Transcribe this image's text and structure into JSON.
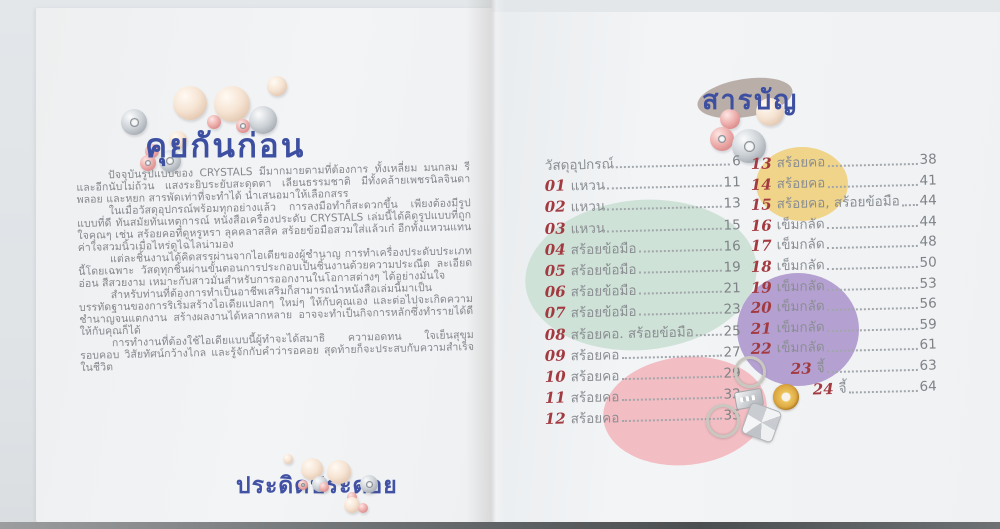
{
  "book": {
    "left_page": {
      "title": "คุยกันก่อน",
      "paragraphs": [
        "ปัจจุบันรูปแบบของ CRYSTALS มีมากมายตามที่ต้องการ ทั้งเหลี่ยม มนกลม รี และอีกนับไม่ถ้วน แสงระยิบระยับสะดุดตา เลียนธรรมชาติ มีทั้งคล้ายเพชรนิลจินดา พลอย และหยก สารพัดเท่าที่จะทำได้ นำเสนอมาให้เลือกสรร",
        "ในเมื่อวัสดุอุปกรณ์พร้อมทุกอย่างแล้ว การลงมือทำก็สะดวกขึ้น เพียงต้องมีรูปแบบที่ดี ทันสมัยทันเหตุการณ์ หนังสือเครื่องประดับ CRYSTALS เล่มนี้ได้คิดรูปแบบที่ถูกใจคุณๆ เช่น สร้อยคอที่ดูหรูหรา ลุคคลาสสิค สร้อยข้อมือสวมใส่แล้วเก๋ อีกทั้งแหวนแทนค่าใจสวมนิ้วเมื่อไหร่ดูไฉไลน่ามอง",
        "แต่ละชิ้นงานได้คิดสรรผ่านจากไอเดียของผู้ชำนาญ การทำเครื่องประดับประเภทนี้โดยเฉพาะ วัสดุทุกชิ้นผ่านขั้นตอนการประกอบเป็นชิ้นงานด้วยความประณีต ละเอียดอ่อน สีสวยงาม เหมาะกับสาวมั่นสำหรับการออกงานในโอกาสต่างๆ ได้อย่างมั่นใจ",
        "สำหรับท่านที่ต้องการทำเป็นอาชีพเสริมก็สามารถนำหนังสือเล่มนี้มาเป็นบรรทัดฐานของการริเริ่มสร้างไอเดียแปลกๆ ใหม่ๆ ให้กับคุณเอง และต่อไปจะเกิดความชำนาญจนแตกงาน สร้างผลงานได้หลากหลาย อาจจะทำเป็นกิจการหลักซึ่งทำรายได้ดีให้กับคุณก็ได้",
        "การทำงานที่ต้องใช้ไอเดียแบบนี้ผู้ทำจะได้สมาธิ ความอดทน ใจเย็นสุขุมรอบคอบ วิสัยทัศน์กว้างไกล และรู้จักกับคำว่ารอคอย สุดท้ายก็จะประสบกับความสำเร็จในชีวิต"
      ],
      "footer_title": "ประดิดประดอย"
    },
    "right_page": {
      "title": "สารบัญ",
      "toc": {
        "left_column": [
          {
            "num": "",
            "label": "วัสดุอุปกรณ์",
            "page": "6"
          },
          {
            "num": "01",
            "label": "แหวน",
            "page": "11"
          },
          {
            "num": "02",
            "label": "แหวน",
            "page": "13"
          },
          {
            "num": "03",
            "label": "แหวน",
            "page": "15"
          },
          {
            "num": "04",
            "label": "สร้อยข้อมือ",
            "page": "16"
          },
          {
            "num": "05",
            "label": "สร้อยข้อมือ",
            "page": "19"
          },
          {
            "num": "06",
            "label": "สร้อยข้อมือ",
            "page": "21"
          },
          {
            "num": "07",
            "label": "สร้อยข้อมือ",
            "page": "23"
          },
          {
            "num": "08",
            "label": "สร้อยคอ. สร้อยข้อมือ",
            "page": "25"
          },
          {
            "num": "09",
            "label": "สร้อยคอ",
            "page": "27"
          },
          {
            "num": "10",
            "label": "สร้อยคอ",
            "page": "29"
          },
          {
            "num": "11",
            "label": "สร้อยคอ",
            "page": "32"
          },
          {
            "num": "12",
            "label": "สร้อยคอ",
            "page": "35"
          }
        ],
        "right_column": [
          {
            "num": "13",
            "label": "สร้อยคอ",
            "page": "38"
          },
          {
            "num": "14",
            "label": "สร้อยคอ",
            "page": "41"
          },
          {
            "num": "15",
            "label": "สร้อยคอ, สร้อยข้อมือ",
            "page": "44"
          },
          {
            "num": "16",
            "label": "เข็มกลัด",
            "page": "44"
          },
          {
            "num": "17",
            "label": "เข็มกลัด",
            "page": "48"
          },
          {
            "num": "18",
            "label": "เข็มกลัด",
            "page": "50"
          },
          {
            "num": "19",
            "label": "เข็มกลัด",
            "page": "53"
          },
          {
            "num": "20",
            "label": "เข็มกลัด",
            "page": "56"
          },
          {
            "num": "21",
            "label": "เข็มกลัด",
            "page": "59"
          },
          {
            "num": "22",
            "label": "เข็มกลัด",
            "page": "61"
          },
          {
            "num": "23",
            "label": "จี้",
            "page": "63"
          },
          {
            "num": "24",
            "label": "จี้",
            "page": "64"
          }
        ]
      }
    },
    "colors": {
      "title_blue": "#3d4fa1",
      "entry_number_red": "#a23a40",
      "body_text_gray": "#84878b",
      "ellipse_green": "#cfe2d8",
      "ellipse_yellow": "#f0d489",
      "ellipse_purple": "#b4a0d1",
      "ellipse_pink": "#f2bdc3",
      "title_ellipse_taupe": "#b2a6a0"
    }
  }
}
